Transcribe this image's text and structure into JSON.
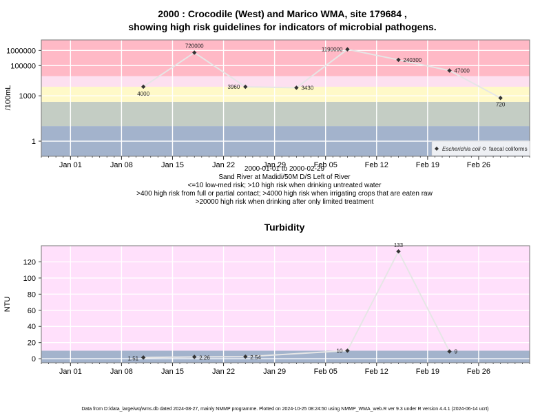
{
  "chart_data": [
    {
      "type": "line",
      "title": [
        "2000 : Crocodile (West) and Marico WMA, site 179684 ,",
        "showing high risk guidelines for indicators of microbial pathogens."
      ],
      "ylabel": "/100mL",
      "yscale": "log",
      "ylim": [
        0.1,
        5000000
      ],
      "xlim": [
        "1999-12-28",
        "2000-03-04"
      ],
      "x_ticks": [
        "Jan 01",
        "Jan 08",
        "Jan 15",
        "Jan 22",
        "Jan 29",
        "Feb 05",
        "Feb 12",
        "Feb 19",
        "Feb 26"
      ],
      "x_tick_dates": [
        "2000-01-01",
        "2000-01-08",
        "2000-01-15",
        "2000-01-22",
        "2000-01-29",
        "2000-02-05",
        "2000-02-12",
        "2000-02-19",
        "2000-02-26"
      ],
      "y_ticks": [
        1,
        1000,
        100000,
        1000000
      ],
      "y_tick_labels": [
        "1",
        "1000",
        "100000",
        "1000000"
      ],
      "grid": true,
      "bands": [
        {
          "from": 0.1,
          "to": 10,
          "color": "#a3b3cc"
        },
        {
          "from": 10,
          "to": 400,
          "color": "#c4cdc4"
        },
        {
          "from": 400,
          "to": 4000,
          "color": "#fff9c8"
        },
        {
          "from": 4000,
          "to": 20000,
          "color": "#fde0f0"
        },
        {
          "from": 20000,
          "to": 5000000,
          "color": "#ffb9c6"
        }
      ],
      "series": [
        {
          "name": "Escherichia coli",
          "x": [
            "2000-01-11",
            "2000-01-18",
            "2000-01-25",
            "2000-02-01",
            "2000-02-08",
            "2000-02-15",
            "2000-02-22",
            "2000-02-29"
          ],
          "y": [
            4000,
            720000,
            3960,
            3430,
            1190000,
            240300,
            47000,
            720
          ],
          "labels": [
            "4000",
            "720000",
            "3960",
            "3430",
            "1190000",
            "240300",
            "47000",
            "720"
          ]
        }
      ],
      "legend": {
        "position": "bottom-right",
        "entries": [
          "Escherichia coli",
          "faecal coliforms"
        ]
      },
      "subtitle_lines": [
        "2000-01-01 to 2000-02-29",
        "Sand River at Madidi/50M D/S Left of River",
        "<=10 low-med risk; >10 high risk when drinking untreated water",
        ">400 high risk from full or partial contact; >4000 high risk when irrigating crops that are eaten raw",
        ">20000 high risk when drinking after only limited treatment"
      ]
    },
    {
      "type": "line",
      "title": "Turbidity",
      "ylabel": "NTU",
      "ylim": [
        -5,
        140
      ],
      "xlim": [
        "1999-12-28",
        "2000-03-04"
      ],
      "x_ticks": [
        "Jan 01",
        "Jan 08",
        "Jan 15",
        "Jan 22",
        "Jan 29",
        "Feb 05",
        "Feb 12",
        "Feb 19",
        "Feb 26"
      ],
      "x_tick_dates": [
        "2000-01-01",
        "2000-01-08",
        "2000-01-15",
        "2000-01-22",
        "2000-01-29",
        "2000-02-05",
        "2000-02-12",
        "2000-02-19",
        "2000-02-26"
      ],
      "y_ticks": [
        0,
        20,
        40,
        60,
        80,
        100,
        120
      ],
      "y_tick_labels": [
        "0",
        "20",
        "40",
        "60",
        "80",
        "100",
        "120"
      ],
      "grid": true,
      "bands": [
        {
          "from": -5,
          "to": 10,
          "color": "#a3b3cc"
        },
        {
          "from": 10,
          "to": 140,
          "color": "#ffe0fb"
        }
      ],
      "series": [
        {
          "x": [
            "2000-01-11",
            "2000-01-18",
            "2000-01-25",
            "2000-02-08",
            "2000-02-15",
            "2000-02-22"
          ],
          "y": [
            1.51,
            2.26,
            2.54,
            10,
            133,
            9
          ],
          "labels": [
            "1.51",
            "2.26",
            "2.54",
            "10",
            "133",
            "9"
          ]
        }
      ]
    }
  ],
  "footer": "Data from D:/data_large/wq/wms.db dated 2024-08-27, mainly NMMP programme. Plotted on 2024-10-25 08:24:50 using NMMP_WMA_web.R ver 9.3 under R version 4.4.1 (2024-06-14 ucrt)"
}
